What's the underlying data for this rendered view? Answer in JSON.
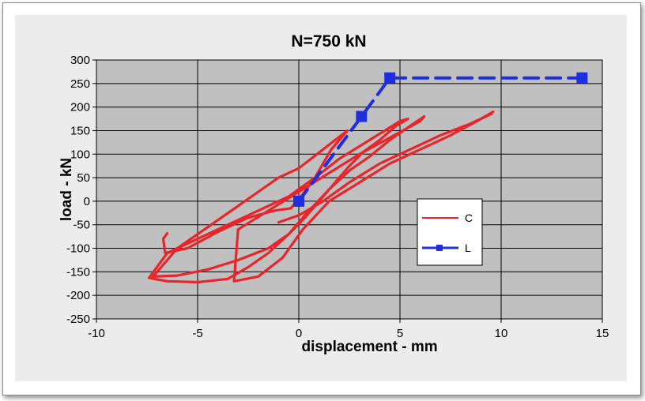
{
  "chart_data": {
    "type": "line",
    "title": "N=750 kN",
    "xlabel": "displacement - mm",
    "ylabel": "load - kN",
    "xlim": [
      -10,
      15
    ],
    "ylim": [
      -250,
      300
    ],
    "xticks": [
      -10,
      -5,
      0,
      5,
      10,
      15
    ],
    "yticks": [
      -250,
      -200,
      -150,
      -100,
      -50,
      0,
      50,
      100,
      150,
      200,
      250,
      300
    ],
    "xtick_labels": [
      "-10",
      "-5",
      "0",
      "5",
      "10",
      "15"
    ],
    "ytick_labels": [
      "-250",
      "-200",
      "-150",
      "-100",
      "-50",
      "0",
      "50",
      "100",
      "150",
      "200",
      "250",
      "300"
    ],
    "grid": true,
    "legend_position": "right-center",
    "colors": {
      "plot_background": "#c0c0c0",
      "chart_background": "#ececec",
      "C": "#e8252a",
      "L": "#1f2fe0"
    },
    "series": [
      {
        "name": "C",
        "style": "solid",
        "x": [
          -6.5,
          -6.7,
          -6.6,
          -5.5,
          -4.0,
          -2.5,
          -1.2,
          -0.4,
          0.2,
          0.8,
          1.2,
          1.6,
          2.0,
          2.4,
          1.2,
          0.0,
          -1.0,
          -2.0,
          -3.0,
          -4.0,
          -5.0,
          -6.0,
          -6.6,
          -7.0,
          -7.2,
          -6.0,
          -4.5,
          -3.0,
          -1.5,
          -0.5,
          0.3,
          1.0,
          1.8,
          2.5,
          3.2,
          4.0,
          4.8,
          5.4,
          5.0,
          3.5,
          2.0,
          0.8,
          -0.5,
          -2.0,
          -3.5,
          -5.0,
          -6.5,
          -7.4,
          -6.5,
          -5.0,
          -3.5,
          -2.5,
          -1.5,
          -0.5,
          0.4,
          1.5,
          2.5,
          3.5,
          4.5,
          5.5,
          6.2,
          6.0,
          4.5,
          3.0,
          1.5,
          0.0,
          -1.5,
          -3.0,
          -3.2,
          -2.0,
          -0.8,
          0.2,
          1.5,
          3.0,
          4.5,
          6.0,
          7.5,
          8.8,
          9.6,
          9.5,
          8.5,
          7.0,
          5.5,
          4.0,
          2.5,
          1.2,
          0.0,
          -1.0
        ],
        "y": [
          -68,
          -80,
          -110,
          -100,
          -65,
          -35,
          -20,
          -15,
          15,
          50,
          80,
          110,
          130,
          150,
          110,
          70,
          50,
          20,
          -10,
          -40,
          -70,
          -100,
          -130,
          -150,
          -160,
          -158,
          -145,
          -125,
          -100,
          -70,
          -35,
          0,
          40,
          75,
          105,
          130,
          160,
          175,
          170,
          130,
          90,
          50,
          10,
          -20,
          -50,
          -80,
          -110,
          -163,
          -170,
          -172,
          -165,
          -140,
          -110,
          -70,
          -25,
          25,
          65,
          95,
          130,
          160,
          180,
          170,
          135,
          100,
          60,
          20,
          -20,
          -60,
          -170,
          -160,
          -120,
          -60,
          0,
          40,
          80,
          110,
          140,
          170,
          190,
          185,
          165,
          140,
          110,
          80,
          40,
          0,
          -30,
          -45
        ]
      },
      {
        "name": "L",
        "style": "dashed",
        "x": [
          0,
          3.1,
          4.5,
          14.0
        ],
        "y": [
          0,
          180,
          262,
          262
        ]
      }
    ]
  }
}
